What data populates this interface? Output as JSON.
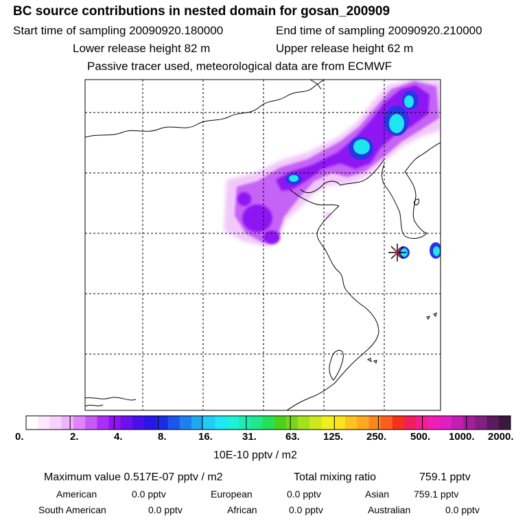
{
  "header": {
    "title": "BC  source contributions in nested domain for gosan_200909",
    "start_time": "Start time of sampling 20090920.180000",
    "end_time": "End time of sampling 20090920.210000",
    "lower_release": "Lower release height   82 m",
    "upper_release": "Upper release height   62 m",
    "tracer_note": "Passive tracer used, meteorological data are from ECMWF"
  },
  "colorbar": {
    "colors": [
      "#ffffff",
      "#fce8ff",
      "#f7d2fe",
      "#efb2fc",
      "#df84fa",
      "#c75af7",
      "#ab2ef6",
      "#8f12f3",
      "#6c10ee",
      "#4a0fea",
      "#2b14e6",
      "#1a2ce6",
      "#1c55ea",
      "#1f7fee",
      "#20a8f2",
      "#22cdf4",
      "#1ee6f5",
      "#1ff0d8",
      "#1eedb0",
      "#1fe88a",
      "#23e25a",
      "#4ad21e",
      "#76d71e",
      "#a4e11f",
      "#cee81f",
      "#f0f01f",
      "#fde21f",
      "#fdc41f",
      "#fda81f",
      "#fd861f",
      "#fb5e1f",
      "#f5301f",
      "#f01f5a",
      "#f01f8f",
      "#f01fb4",
      "#e01fc2",
      "#c21fb2",
      "#a21f9a",
      "#821f80",
      "#5c1a5e",
      "#3a1a3c"
    ],
    "tick_labels": [
      "0.",
      "2.",
      "4.",
      "8.",
      "16.",
      "31.",
      "63.",
      "125.",
      "250.",
      "500.",
      "1000.",
      "2000."
    ],
    "units": "10E-10 pptv / m2"
  },
  "summary": {
    "max_value": "Maximum value  0.517E-07 pptv / m2",
    "total_label": "Total mixing ratio",
    "total_value": "759.1 pptv",
    "sources": [
      {
        "name": "American",
        "value": "0.0 pptv"
      },
      {
        "name": "European",
        "value": "0.0 pptv"
      },
      {
        "name": "Asian",
        "value": "759.1 pptv"
      },
      {
        "name": "South American",
        "value": "0.0 pptv"
      },
      {
        "name": "African",
        "value": "0.0 pptv"
      },
      {
        "name": "Australian",
        "value": "0.0 pptv"
      }
    ]
  }
}
